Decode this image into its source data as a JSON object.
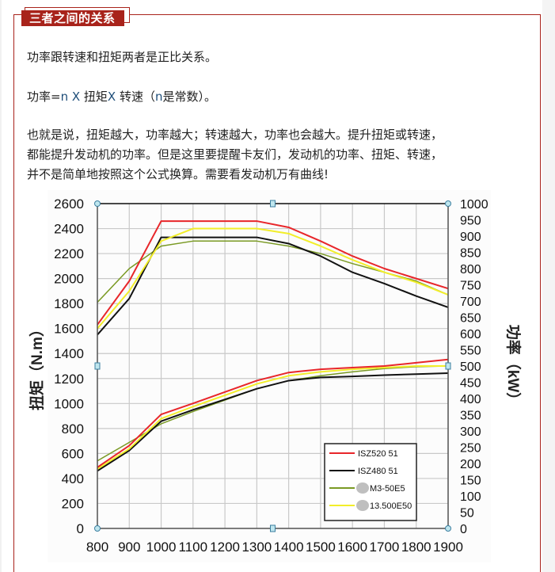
{
  "section": {
    "title": "三者之间的关系"
  },
  "paragraphs": {
    "p1": "功率跟转速和扭矩两者是正比关系。",
    "p2": {
      "part1": "功率=",
      "n1": "n",
      "x1": " X ",
      "part2": "扭矩",
      "x2": "X",
      "part3": " 转速（",
      "n2": "n",
      "part4": "是常数）。"
    },
    "p3_lines": [
      "也就是说，扭矩越大，功率越大；转速越大，功率也会越大。提升扭矩或转速，",
      "都能提升发动机的功率。但是这里要提醒卡友们，发动机的功率、扭矩、转速，",
      "并不是简单地按照这个公式换算。需要看发动机万有曲线!"
    ]
  },
  "colors": {
    "accent": "#a8231b",
    "red_series": "#e8262a",
    "black_series": "#111111",
    "olive_series": "#7a9a24",
    "yellow_series": "#f2ee2a"
  },
  "chart_data": {
    "type": "line",
    "title": "",
    "xlabel": "",
    "ylabel_left": "扭矩（N.m）",
    "ylabel_right": "功率（kW）",
    "x": [
      800,
      900,
      1000,
      1100,
      1200,
      1300,
      1400,
      1500,
      1600,
      1700,
      1800,
      1900
    ],
    "xlim": [
      800,
      1900
    ],
    "ylim_left": [
      0,
      2600
    ],
    "ylim_right": [
      0,
      1000
    ],
    "x_ticks": [
      "800",
      "900",
      "1000",
      "1100",
      "1200",
      "1300",
      "1400",
      "1500",
      "1600",
      "1700",
      "1800",
      "1900"
    ],
    "y_ticks_left": [
      "0",
      "200",
      "400",
      "600",
      "800",
      "1000",
      "1200",
      "1400",
      "1600",
      "1800",
      "2000",
      "2200",
      "2400",
      "2600"
    ],
    "y_ticks_right": [
      "0",
      "50",
      "100",
      "150",
      "200",
      "250",
      "300",
      "350",
      "400",
      "450",
      "500",
      "550",
      "600",
      "650",
      "700",
      "750",
      "800",
      "850",
      "900",
      "950",
      "1000"
    ],
    "grid": true,
    "legend_position": "bottom-right",
    "series": [
      {
        "name": "ISZ520 51",
        "color": "#e8262a",
        "torque": [
          1630,
          1980,
          2460,
          2460,
          2460,
          2460,
          2410,
          2300,
          2180,
          2080,
          2000,
          1920
        ],
        "power": [
          188,
          255,
          351,
          385,
          420,
          455,
          480,
          490,
          495,
          500,
          510,
          520
        ]
      },
      {
        "name": "ISZ480 51",
        "color": "#111111",
        "torque": [
          1550,
          1840,
          2330,
          2330,
          2330,
          2330,
          2280,
          2180,
          2050,
          1960,
          1860,
          1770
        ],
        "power": [
          177,
          240,
          330,
          365,
          397,
          430,
          455,
          465,
          468,
          472,
          475,
          478
        ]
      },
      {
        "name": "M3-50E5",
        "color": "#7a9a24",
        "torque": [
          1810,
          2080,
          2260,
          2300,
          2300,
          2300,
          2260,
          2200,
          2120,
          2050,
          1980,
          1870
        ],
        "power": [
          208,
          265,
          322,
          360,
          395,
          430,
          455,
          470,
          482,
          492,
          498,
          500
        ]
      },
      {
        "name": "13.500E50",
        "color": "#f2ee2a",
        "torque": [
          1600,
          1900,
          2300,
          2400,
          2400,
          2400,
          2360,
          2260,
          2150,
          2050,
          1970,
          1870
        ],
        "power": [
          183,
          245,
          338,
          375,
          410,
          445,
          470,
          482,
          490,
          495,
          500,
          500
        ]
      }
    ]
  }
}
